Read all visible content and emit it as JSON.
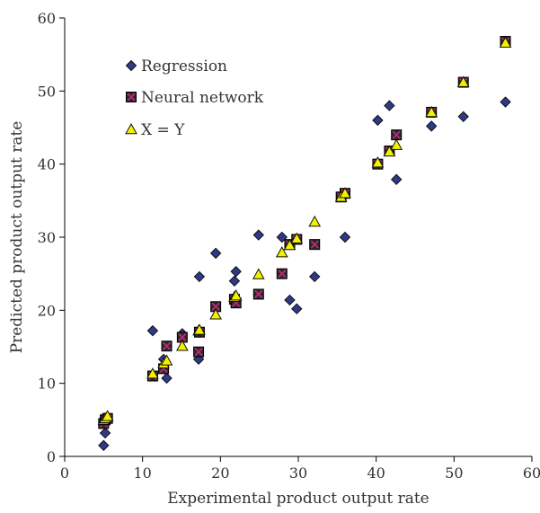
{
  "chart_data": {
    "type": "scatter",
    "xlabel": "Experimental product output rate",
    "ylabel": "Predicted product output  rate",
    "xlim": [
      0,
      60
    ],
    "ylim": [
      0,
      60
    ],
    "x_ticks": [
      0,
      10,
      20,
      30,
      40,
      50,
      60
    ],
    "y_ticks": [
      0,
      10,
      20,
      30,
      40,
      50,
      60
    ],
    "grid": false,
    "legend_position": "top-left",
    "series": [
      {
        "name": "Regression",
        "marker": "diamond",
        "color": "#2e3a87",
        "points": [
          [
            5,
            1.5
          ],
          [
            5.2,
            3.2
          ],
          [
            5.5,
            5.0
          ],
          [
            11.3,
            17.2
          ],
          [
            12.7,
            13.3
          ],
          [
            13.1,
            10.7
          ],
          [
            15.1,
            16.8
          ],
          [
            17.2,
            13.3
          ],
          [
            17.3,
            24.6
          ],
          [
            19.4,
            27.8
          ],
          [
            21.8,
            24.0
          ],
          [
            22.0,
            25.3
          ],
          [
            24.9,
            30.3
          ],
          [
            27.9,
            30.0
          ],
          [
            28.9,
            21.4
          ],
          [
            29.8,
            20.2
          ],
          [
            32.1,
            24.6
          ],
          [
            35.8,
            35.8
          ],
          [
            36.0,
            30.0
          ],
          [
            40.2,
            46.0
          ],
          [
            41.7,
            48.0
          ],
          [
            42.6,
            37.9
          ],
          [
            47.1,
            45.2
          ],
          [
            51.2,
            46.5
          ],
          [
            56.6,
            48.5
          ]
        ]
      },
      {
        "name": "Neural network",
        "marker": "square-x",
        "color": "#c0267a",
        "points": [
          [
            5,
            4.5
          ],
          [
            5.2,
            5.0
          ],
          [
            5.5,
            5.2
          ],
          [
            11.3,
            11.0
          ],
          [
            12.7,
            12.0
          ],
          [
            13.1,
            15.1
          ],
          [
            15.1,
            16.3
          ],
          [
            17.2,
            14.3
          ],
          [
            17.3,
            17.0
          ],
          [
            19.4,
            20.5
          ],
          [
            21.8,
            21.5
          ],
          [
            22.0,
            21.0
          ],
          [
            24.9,
            22.2
          ],
          [
            27.9,
            25.0
          ],
          [
            28.9,
            29.0
          ],
          [
            29.8,
            29.7
          ],
          [
            32.1,
            29.0
          ],
          [
            35.5,
            35.5
          ],
          [
            36.0,
            36.0
          ],
          [
            40.2,
            40.0
          ],
          [
            41.7,
            41.8
          ],
          [
            42.6,
            44.0
          ],
          [
            47.1,
            47.1
          ],
          [
            51.2,
            51.2
          ],
          [
            56.6,
            56.8
          ]
        ]
      },
      {
        "name": "X = Y",
        "marker": "triangle",
        "color": "#f2f200",
        "points": [
          [
            5,
            5
          ],
          [
            5.2,
            5.2
          ],
          [
            5.5,
            5.5
          ],
          [
            11.3,
            11.3
          ],
          [
            12.7,
            12.7
          ],
          [
            13.1,
            13.1
          ],
          [
            15.1,
            15.1
          ],
          [
            17.2,
            17.2
          ],
          [
            17.3,
            17.3
          ],
          [
            19.4,
            19.4
          ],
          [
            21.8,
            21.8
          ],
          [
            22.0,
            22.0
          ],
          [
            24.9,
            24.9
          ],
          [
            27.9,
            27.9
          ],
          [
            28.9,
            28.9
          ],
          [
            29.8,
            29.8
          ],
          [
            32.1,
            32.1
          ],
          [
            35.5,
            35.5
          ],
          [
            36.0,
            36.0
          ],
          [
            40.2,
            40.2
          ],
          [
            41.7,
            41.7
          ],
          [
            42.6,
            42.6
          ],
          [
            47.1,
            47.1
          ],
          [
            51.2,
            51.2
          ],
          [
            56.6,
            56.6
          ]
        ]
      }
    ]
  }
}
